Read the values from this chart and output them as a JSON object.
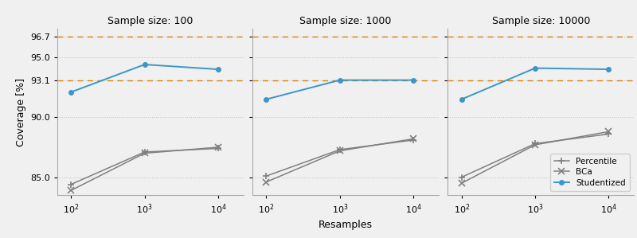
{
  "titles": [
    "Sample size: 100",
    "Sample size: 1000",
    "Sample size: 10000"
  ],
  "resamples": [
    100,
    1000,
    10000
  ],
  "hline_upper": 96.7,
  "hline_lower": 93.1,
  "hline_color": "#D4820A",
  "percentile": {
    "n100": [
      84.4,
      87.1,
      87.4
    ],
    "n1000": [
      85.1,
      87.3,
      88.1
    ],
    "n10000": [
      85.0,
      87.8,
      88.6
    ]
  },
  "bca": {
    "n100": [
      83.9,
      87.0,
      87.5
    ],
    "n1000": [
      84.6,
      87.2,
      88.2
    ],
    "n10000": [
      84.5,
      87.7,
      88.8
    ]
  },
  "studentized": {
    "n100": [
      92.1,
      94.4,
      94.0
    ],
    "n1000": [
      91.5,
      93.1,
      93.1
    ],
    "n10000": [
      91.5,
      94.1,
      94.0
    ]
  },
  "gray_color": "#808080",
  "blue_color": "#3C96C8",
  "bg_color": "#f0f0f0",
  "ylim": [
    83.5,
    97.4
  ],
  "yticks": [
    85.0,
    90.0,
    93.1,
    95.0,
    96.7
  ],
  "ytick_labels": [
    "85.0",
    "90.0",
    "93.1",
    "95.0",
    "96.7"
  ],
  "xlabel": "Resamples",
  "ylabel": "Coverage [%]",
  "legend_entries": [
    "Percentile",
    "BCa",
    "Studentized"
  ]
}
